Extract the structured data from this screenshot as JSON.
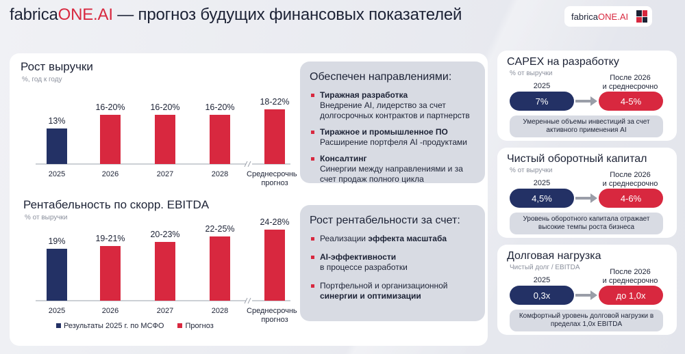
{
  "header": {
    "title_prefix": "fabrica",
    "title_brand": "ONE.AI",
    "title_rest": " — прогноз будущих финансовых показателей",
    "logo_prefix": "fabrica",
    "logo_brand": "ONE.AI"
  },
  "colors": {
    "navy": "#233165",
    "red": "#d8283f",
    "panel": "#d8dbe3"
  },
  "revenue": {
    "title": "Рост выручки",
    "subtitle": "%, год к году"
  },
  "ebitda": {
    "title": "Рентабельность по скорр. EBITDA",
    "subtitle": "% от выручки"
  },
  "chart_data": [
    {
      "type": "bar",
      "title": "Рост выручки",
      "ylabel": "%, год к году",
      "categories": [
        "2025",
        "2026",
        "2027",
        "2028",
        "Среднесрочный прогноз"
      ],
      "values": [
        13,
        18,
        18,
        18,
        20
      ],
      "labels": [
        "13%",
        "16-20%",
        "16-20%",
        "16-20%",
        "18-22%"
      ],
      "series_type": [
        "Результаты 2025 г. по МСФО",
        "Прогноз",
        "Прогноз",
        "Прогноз",
        "Прогноз"
      ]
    },
    {
      "type": "bar",
      "title": "Рентабельность по скорр. EBITDA",
      "ylabel": "% от выручки",
      "categories": [
        "2025",
        "2026",
        "2027",
        "2028",
        "Среднесрочный прогноз"
      ],
      "values": [
        19,
        20,
        21.5,
        23.5,
        26
      ],
      "labels": [
        "19%",
        "19-21%",
        "20-23%",
        "22-25%",
        "24-28%"
      ],
      "series_type": [
        "Результаты 2025 г. по МСФО",
        "Прогноз",
        "Прогноз",
        "Прогноз",
        "Прогноз"
      ]
    }
  ],
  "chart_axis": {
    "cat_1": "2025",
    "cat_2": "2026",
    "cat_3": "2027",
    "cat_4": "2028",
    "cat_5_line1": "Среднесрочный",
    "cat_5_line2": "прогноз"
  },
  "info_revenue": {
    "header": "Обеспечен направлениями:",
    "items": [
      {
        "bold": "Тиражная разработка",
        "text": "Внедрение AI, лидерство за счет долгосрочных контрактов и партнерств"
      },
      {
        "bold": "Тиражное и промышленное ПО",
        "text": "Расширение портфеля  AI -продуктами"
      },
      {
        "bold": "Консалтинг",
        "text": "Синергии между направлениями и за счет продаж полного цикла"
      }
    ]
  },
  "info_margin": {
    "header": "Рост рентабельности за счет:",
    "items": [
      {
        "pre": "Реализации ",
        "bold": "эффекта масштаба",
        "post": ""
      },
      {
        "pre": "",
        "bold": "AI-эффективности",
        "post": "в процессе разработки"
      },
      {
        "pre": "Портфельной и организационной ",
        "bold": "синергии и оптимизации",
        "post": ""
      }
    ]
  },
  "legend": {
    "actual": "Результаты 2025 г. по МСФО",
    "forecast": "Прогноз"
  },
  "capex": {
    "title": "CAPEX на разработку",
    "subtitle": "% от выручки",
    "from_year": "2025",
    "to_line1": "После 2026",
    "to_line2": "и среднесрочно",
    "from_value": "7%",
    "to_value": "4-5%",
    "note": "Умеренные объемы инвестиций за счет активного применения AI"
  },
  "nwc": {
    "title": "Чистый оборотный капитал",
    "subtitle": "% от выручки",
    "from_year": "2025",
    "to_line1": "После 2026",
    "to_line2": "и среднесрочно",
    "from_value": "4,5%",
    "to_value": "4-6%",
    "note": "Уровень оборотного капитала отражает высокие темпы роста бизнеса"
  },
  "debt": {
    "title": "Долговая нагрузка",
    "subtitle": "Чистый долг / EBITDA",
    "from_year": "2025",
    "to_line1": "После 2026",
    "to_line2": "и среднесрочно",
    "from_value": "0,3х",
    "to_value": "до 1,0х",
    "note": "Комфортный уровень долговой нагрузки в пределах 1,0х EBITDA"
  }
}
